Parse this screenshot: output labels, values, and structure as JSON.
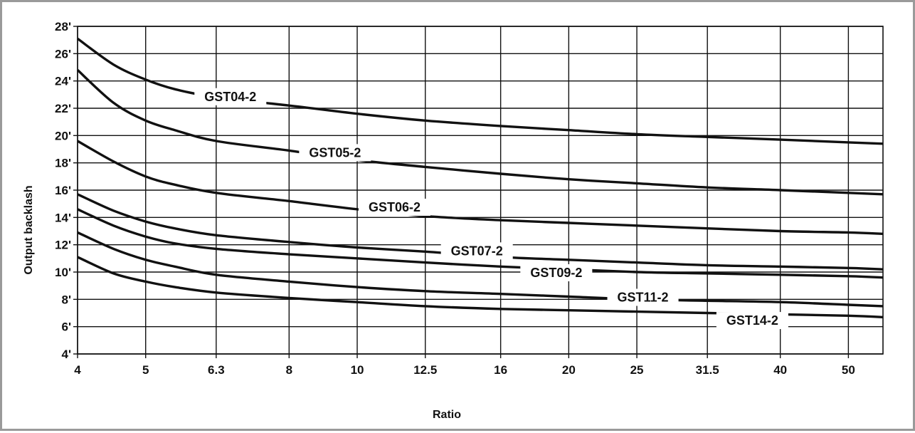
{
  "chart_data": {
    "type": "line",
    "xlabel": "Ratio",
    "ylabel": "Output backlash",
    "x_ticks": [
      4,
      5,
      6.3,
      8,
      10,
      12.5,
      16,
      20,
      25,
      31.5,
      40,
      50
    ],
    "x_tick_labels": [
      "4",
      "5",
      "6.3",
      "8",
      "10",
      "12.5",
      "16",
      "20",
      "25",
      "31.5",
      "40",
      "50"
    ],
    "x_scale": "log",
    "xlim": [
      4,
      56
    ],
    "y_ticks": [
      4,
      6,
      8,
      10,
      12,
      14,
      16,
      18,
      20,
      22,
      24,
      26,
      28
    ],
    "y_tick_labels": [
      "4'",
      "6'",
      "8'",
      "10'",
      "12'",
      "14'",
      "16'",
      "18'",
      "20'",
      "22'",
      "24'",
      "26'",
      "28'"
    ],
    "ylim": [
      4,
      28
    ],
    "grid": true,
    "series": [
      {
        "name": "GST04-2",
        "label_x": 6.6,
        "label_y": 22.9,
        "x": [
          4,
          4.5,
          5,
          5.5,
          6.3,
          8,
          10,
          12.5,
          16,
          20,
          25,
          31.5,
          40,
          50,
          56
        ],
        "values": [
          27.1,
          25.2,
          24.1,
          23.4,
          22.8,
          22.2,
          21.6,
          21.1,
          20.7,
          20.4,
          20.1,
          19.9,
          19.7,
          19.5,
          19.4
        ]
      },
      {
        "name": "GST05-2",
        "label_x": 9.3,
        "label_y": 18.8,
        "x": [
          4,
          4.5,
          5,
          5.5,
          6.3,
          8,
          10,
          12.5,
          16,
          20,
          25,
          31.5,
          40,
          50,
          56
        ],
        "values": [
          24.8,
          22.4,
          21.1,
          20.4,
          19.6,
          18.9,
          18.2,
          17.7,
          17.2,
          16.8,
          16.5,
          16.2,
          16.0,
          15.8,
          15.7
        ]
      },
      {
        "name": "GST06-2",
        "label_x": 11.3,
        "label_y": 14.8,
        "x": [
          4,
          4.5,
          5,
          5.5,
          6.3,
          8,
          10,
          12.5,
          16,
          20,
          25,
          31.5,
          40,
          50,
          56
        ],
        "values": [
          19.6,
          18.1,
          17.0,
          16.4,
          15.8,
          15.2,
          14.6,
          14.1,
          13.8,
          13.6,
          13.4,
          13.2,
          13.0,
          12.9,
          12.8
        ]
      },
      {
        "name": "GST07-2",
        "label_x": 14.8,
        "label_y": 11.6,
        "x": [
          4,
          4.5,
          5,
          5.5,
          6.3,
          8,
          10,
          12.5,
          16,
          20,
          25,
          31.5,
          40,
          50,
          56
        ],
        "values": [
          15.7,
          14.5,
          13.7,
          13.2,
          12.7,
          12.2,
          11.8,
          11.5,
          11.1,
          10.9,
          10.7,
          10.5,
          10.4,
          10.3,
          10.2
        ]
      },
      {
        "name": "GST09-2",
        "label_x": 19.2,
        "label_y": 10.0,
        "x": [
          4,
          4.5,
          5,
          5.5,
          6.3,
          8,
          10,
          12.5,
          16,
          20,
          25,
          31.5,
          40,
          50,
          56
        ],
        "values": [
          14.6,
          13.4,
          12.6,
          12.1,
          11.7,
          11.3,
          11.0,
          10.7,
          10.4,
          10.2,
          10.0,
          9.9,
          9.8,
          9.7,
          9.6
        ]
      },
      {
        "name": "GST11-2",
        "label_x": 25.5,
        "label_y": 8.2,
        "x": [
          4,
          4.5,
          5,
          5.5,
          6.3,
          8,
          10,
          12.5,
          16,
          20,
          25,
          31.5,
          40,
          50,
          56
        ],
        "values": [
          12.9,
          11.7,
          10.9,
          10.4,
          9.8,
          9.3,
          8.9,
          8.6,
          8.4,
          8.2,
          8.0,
          7.9,
          7.8,
          7.6,
          7.5
        ]
      },
      {
        "name": "GST14-2",
        "label_x": 36.5,
        "label_y": 6.5,
        "x": [
          4,
          4.5,
          5,
          5.5,
          6.3,
          8,
          10,
          12.5,
          16,
          20,
          25,
          31.5,
          40,
          50,
          56
        ],
        "values": [
          11.1,
          9.9,
          9.3,
          8.9,
          8.5,
          8.1,
          7.8,
          7.5,
          7.3,
          7.2,
          7.1,
          7.0,
          6.9,
          6.8,
          6.7
        ]
      }
    ]
  }
}
